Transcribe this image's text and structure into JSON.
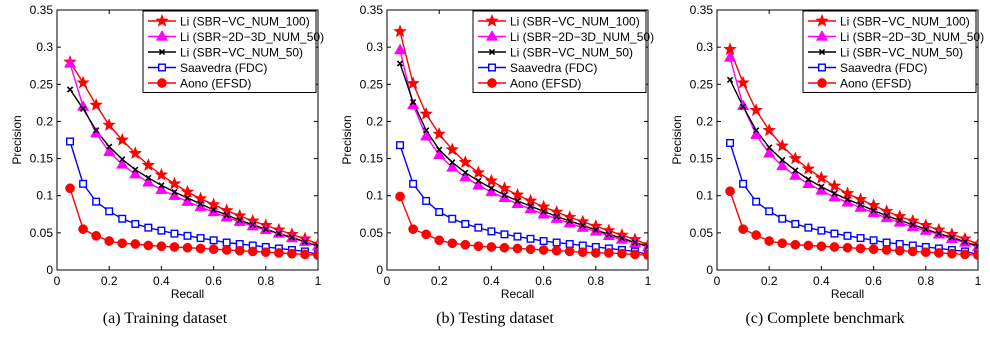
{
  "chart_data": [
    {
      "type": "line",
      "caption": "(a)  Training dataset",
      "xlabel": "Recall",
      "ylabel": "Precision",
      "xlim": [
        0,
        1
      ],
      "ylim": [
        0,
        0.35
      ],
      "xticks": [
        "0",
        "0.2",
        "0.4",
        "0.6",
        "0.8",
        "1"
      ],
      "yticks": [
        "0",
        "0.05",
        "0.1",
        "0.15",
        "0.2",
        "0.25",
        "0.3",
        "0.35"
      ],
      "legend_position": "top-right",
      "grid": false,
      "x": [
        0.05,
        0.1,
        0.15,
        0.2,
        0.25,
        0.3,
        0.35,
        0.4,
        0.45,
        0.5,
        0.55,
        0.6,
        0.65,
        0.7,
        0.75,
        0.8,
        0.85,
        0.9,
        0.95,
        1.0
      ],
      "series": [
        {
          "name": "Li (SBR−VC_NUM_100)",
          "color": "#ff0000",
          "marker": "star",
          "values": [
            0.28,
            0.252,
            0.222,
            0.195,
            0.175,
            0.157,
            0.141,
            0.128,
            0.116,
            0.105,
            0.096,
            0.088,
            0.08,
            0.073,
            0.066,
            0.06,
            0.054,
            0.048,
            0.042,
            0.035
          ]
        },
        {
          "name": "Li (SBR−2D−3D_NUM_50)",
          "color": "#ff00ff",
          "marker": "triangle",
          "values": [
            0.278,
            0.22,
            0.184,
            0.159,
            0.142,
            0.129,
            0.118,
            0.108,
            0.1,
            0.092,
            0.085,
            0.078,
            0.071,
            0.065,
            0.059,
            0.054,
            0.049,
            0.043,
            0.038,
            0.032
          ]
        },
        {
          "name": "Li (SBR−VC_NUM_50)",
          "color": "#000000",
          "marker": "x",
          "values": [
            0.243,
            0.217,
            0.188,
            0.166,
            0.149,
            0.135,
            0.124,
            0.114,
            0.105,
            0.097,
            0.089,
            0.081,
            0.074,
            0.067,
            0.061,
            0.055,
            0.049,
            0.044,
            0.038,
            0.032
          ]
        },
        {
          "name": "Saavedra (FDC)",
          "color": "#0000ff",
          "marker": "square",
          "values": [
            0.173,
            0.116,
            0.092,
            0.079,
            0.069,
            0.062,
            0.057,
            0.053,
            0.049,
            0.046,
            0.043,
            0.04,
            0.037,
            0.035,
            0.033,
            0.031,
            0.029,
            0.027,
            0.025,
            0.021
          ]
        },
        {
          "name": "Aono (EFSD)",
          "color": "#ff0000",
          "marker": "circle",
          "values": [
            0.11,
            0.055,
            0.046,
            0.039,
            0.036,
            0.035,
            0.033,
            0.032,
            0.031,
            0.03,
            0.029,
            0.028,
            0.027,
            0.026,
            0.025,
            0.024,
            0.023,
            0.022,
            0.021,
            0.02
          ]
        }
      ]
    },
    {
      "type": "line",
      "caption": "(b)  Testing dataset",
      "xlabel": "Recall",
      "ylabel": "Precision",
      "xlim": [
        0,
        1
      ],
      "ylim": [
        0,
        0.35
      ],
      "xticks": [
        "0",
        "0.2",
        "0.4",
        "0.6",
        "0.8",
        "1"
      ],
      "yticks": [
        "0",
        "0.05",
        "0.1",
        "0.15",
        "0.2",
        "0.25",
        "0.3",
        "0.35"
      ],
      "legend_position": "top-right",
      "grid": false,
      "x": [
        0.05,
        0.1,
        0.15,
        0.2,
        0.25,
        0.3,
        0.35,
        0.4,
        0.45,
        0.5,
        0.55,
        0.6,
        0.65,
        0.7,
        0.75,
        0.8,
        0.85,
        0.9,
        0.95,
        1.0
      ],
      "series": [
        {
          "name": "Li (SBR−VC_NUM_100)",
          "color": "#ff0000",
          "marker": "star",
          "values": [
            0.321,
            0.251,
            0.21,
            0.183,
            0.162,
            0.145,
            0.131,
            0.12,
            0.11,
            0.101,
            0.093,
            0.085,
            0.078,
            0.071,
            0.065,
            0.059,
            0.053,
            0.047,
            0.041,
            0.034
          ]
        },
        {
          "name": "Li (SBR−2D−3D_NUM_50)",
          "color": "#ff00ff",
          "marker": "triangle",
          "values": [
            0.296,
            0.222,
            0.18,
            0.155,
            0.138,
            0.125,
            0.114,
            0.105,
            0.097,
            0.089,
            0.082,
            0.075,
            0.069,
            0.063,
            0.057,
            0.052,
            0.046,
            0.041,
            0.036,
            0.031
          ]
        },
        {
          "name": "Li (SBR−VC_NUM_50)",
          "color": "#000000",
          "marker": "x",
          "values": [
            0.278,
            0.226,
            0.188,
            0.162,
            0.145,
            0.131,
            0.12,
            0.11,
            0.101,
            0.093,
            0.086,
            0.079,
            0.072,
            0.066,
            0.06,
            0.054,
            0.048,
            0.043,
            0.037,
            0.032
          ]
        },
        {
          "name": "Saavedra (FDC)",
          "color": "#0000ff",
          "marker": "square",
          "values": [
            0.168,
            0.116,
            0.093,
            0.078,
            0.069,
            0.062,
            0.057,
            0.052,
            0.048,
            0.045,
            0.042,
            0.039,
            0.037,
            0.035,
            0.033,
            0.031,
            0.029,
            0.027,
            0.025,
            0.021
          ]
        },
        {
          "name": "Aono (EFSD)",
          "color": "#ff0000",
          "marker": "circle",
          "values": [
            0.099,
            0.055,
            0.048,
            0.04,
            0.036,
            0.034,
            0.032,
            0.031,
            0.03,
            0.029,
            0.028,
            0.027,
            0.026,
            0.025,
            0.024,
            0.023,
            0.023,
            0.022,
            0.021,
            0.02
          ]
        }
      ]
    },
    {
      "type": "line",
      "caption": "(c)  Complete benchmark",
      "xlabel": "Recall",
      "ylabel": "Precision",
      "xlim": [
        0,
        1
      ],
      "ylim": [
        0,
        0.35
      ],
      "xticks": [
        "0",
        "0.2",
        "0.4",
        "0.6",
        "0.8",
        "1"
      ],
      "yticks": [
        "0",
        "0.05",
        "0.1",
        "0.15",
        "0.2",
        "0.25",
        "0.3",
        "0.35"
      ],
      "legend_position": "top-right",
      "grid": false,
      "x": [
        0.05,
        0.1,
        0.15,
        0.2,
        0.25,
        0.3,
        0.35,
        0.4,
        0.45,
        0.5,
        0.55,
        0.6,
        0.65,
        0.7,
        0.75,
        0.8,
        0.85,
        0.9,
        0.95,
        1.0
      ],
      "series": [
        {
          "name": "Li (SBR−VC_NUM_100)",
          "color": "#ff0000",
          "marker": "star",
          "values": [
            0.297,
            0.252,
            0.215,
            0.188,
            0.167,
            0.15,
            0.136,
            0.124,
            0.113,
            0.103,
            0.095,
            0.087,
            0.079,
            0.072,
            0.066,
            0.06,
            0.054,
            0.048,
            0.042,
            0.035
          ]
        },
        {
          "name": "Li (SBR−2D−3D_NUM_50)",
          "color": "#ff00ff",
          "marker": "triangle",
          "values": [
            0.286,
            0.221,
            0.182,
            0.157,
            0.14,
            0.127,
            0.116,
            0.107,
            0.098,
            0.091,
            0.084,
            0.077,
            0.07,
            0.064,
            0.058,
            0.053,
            0.048,
            0.042,
            0.037,
            0.031
          ]
        },
        {
          "name": "Li (SBR−VC_NUM_50)",
          "color": "#000000",
          "marker": "x",
          "values": [
            0.256,
            0.22,
            0.188,
            0.165,
            0.148,
            0.134,
            0.122,
            0.112,
            0.103,
            0.095,
            0.088,
            0.08,
            0.073,
            0.067,
            0.061,
            0.055,
            0.049,
            0.044,
            0.038,
            0.032
          ]
        },
        {
          "name": "Saavedra (FDC)",
          "color": "#0000ff",
          "marker": "square",
          "values": [
            0.171,
            0.116,
            0.092,
            0.079,
            0.069,
            0.062,
            0.057,
            0.053,
            0.049,
            0.046,
            0.043,
            0.04,
            0.037,
            0.035,
            0.033,
            0.031,
            0.029,
            0.027,
            0.025,
            0.021
          ]
        },
        {
          "name": "Aono (EFSD)",
          "color": "#ff0000",
          "marker": "circle",
          "values": [
            0.106,
            0.055,
            0.047,
            0.039,
            0.036,
            0.034,
            0.033,
            0.032,
            0.031,
            0.03,
            0.029,
            0.028,
            0.027,
            0.026,
            0.025,
            0.024,
            0.023,
            0.022,
            0.021,
            0.02
          ]
        }
      ]
    }
  ]
}
